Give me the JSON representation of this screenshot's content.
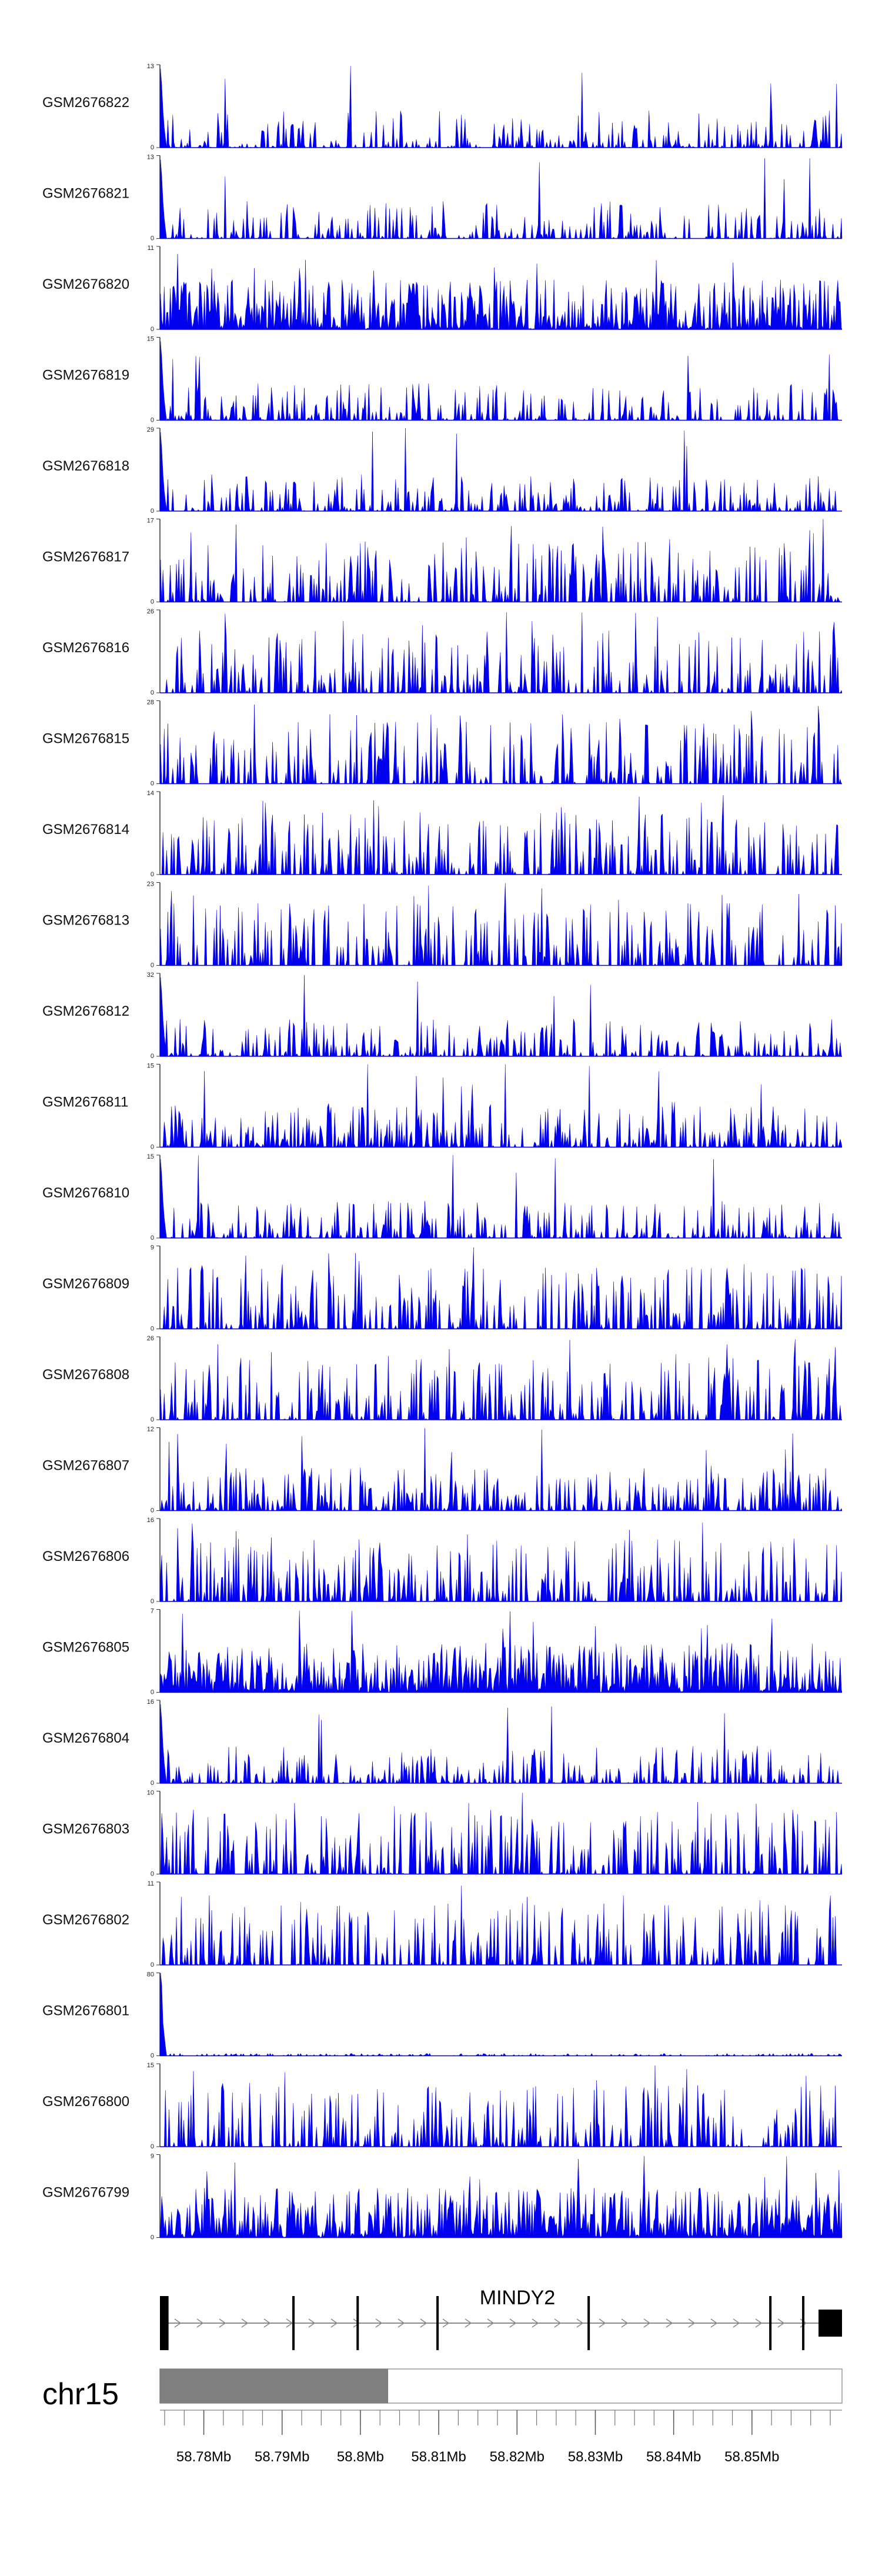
{
  "chart_data": {
    "type": "area",
    "genome_view": {
      "chromosome": "chr15",
      "gene": "MINDY2",
      "x_axis_tick_labels": [
        "58.78Mb",
        "58.79Mb",
        "58.8Mb",
        "58.81Mb",
        "58.82Mb",
        "58.83Mb",
        "58.84Mb",
        "58.85Mb"
      ],
      "x_axis_tick_positions_mb": [
        58.78,
        58.79,
        58.8,
        58.81,
        58.82,
        58.83,
        58.84,
        58.85
      ],
      "x_range_mb": [
        58.7744,
        58.8615
      ],
      "ideogram_highlight_mb": [
        58.7744,
        58.8035
      ],
      "exons_mb": [
        [
          58.7744,
          58.7755
        ],
        [
          58.7913,
          58.7916
        ],
        [
          58.7995,
          58.7998
        ],
        [
          58.8097,
          58.81
        ],
        [
          58.829,
          58.8293
        ],
        [
          58.8522,
          58.8525
        ],
        [
          58.8564,
          58.8567
        ],
        [
          58.8585,
          58.8615
        ]
      ]
    },
    "fill_color": "#0000ee",
    "tracks": [
      {
        "name": "GSM2676822",
        "ymax": "13",
        "y_min_label": "0",
        "profile": "sparse",
        "seed": 11
      },
      {
        "name": "GSM2676821",
        "ymax": "13",
        "y_min_label": "0",
        "profile": "sparse",
        "seed": 12
      },
      {
        "name": "GSM2676820",
        "ymax": "11",
        "y_min_label": "0",
        "profile": "dense",
        "seed": 13
      },
      {
        "name": "GSM2676819",
        "ymax": "15",
        "y_min_label": "0",
        "profile": "sparse",
        "seed": 14
      },
      {
        "name": "GSM2676818",
        "ymax": "29",
        "y_min_label": "0",
        "profile": "sparse",
        "seed": 15
      },
      {
        "name": "GSM2676817",
        "ymax": "17",
        "y_min_label": "0",
        "profile": "spiky",
        "seed": 16
      },
      {
        "name": "GSM2676816",
        "ymax": "26",
        "y_min_label": "0",
        "profile": "spiky",
        "seed": 17
      },
      {
        "name": "GSM2676815",
        "ymax": "28",
        "y_min_label": "0",
        "profile": "spiky",
        "seed": 18
      },
      {
        "name": "GSM2676814",
        "ymax": "14",
        "y_min_label": "0",
        "profile": "spiky",
        "seed": 19
      },
      {
        "name": "GSM2676813",
        "ymax": "23",
        "y_min_label": "0",
        "profile": "spiky",
        "seed": 20
      },
      {
        "name": "GSM2676812",
        "ymax": "32",
        "y_min_label": "0",
        "profile": "sparse",
        "seed": 21
      },
      {
        "name": "GSM2676811",
        "ymax": "15",
        "y_min_label": "0",
        "profile": "medium",
        "seed": 22
      },
      {
        "name": "GSM2676810",
        "ymax": "15",
        "y_min_label": "0",
        "profile": "sparse",
        "seed": 23
      },
      {
        "name": "GSM2676809",
        "ymax": "9",
        "y_min_label": "0",
        "profile": "spiky",
        "seed": 24
      },
      {
        "name": "GSM2676808",
        "ymax": "26",
        "y_min_label": "0",
        "profile": "spiky",
        "seed": 25
      },
      {
        "name": "GSM2676807",
        "ymax": "12",
        "y_min_label": "0",
        "profile": "medium",
        "seed": 26
      },
      {
        "name": "GSM2676806",
        "ymax": "16",
        "y_min_label": "0",
        "profile": "spiky",
        "seed": 27
      },
      {
        "name": "GSM2676805",
        "ymax": "7",
        "y_min_label": "0",
        "profile": "dense",
        "seed": 28
      },
      {
        "name": "GSM2676804",
        "ymax": "16",
        "y_min_label": "0",
        "profile": "sparse",
        "seed": 29
      },
      {
        "name": "GSM2676803",
        "ymax": "10",
        "y_min_label": "0",
        "profile": "spiky",
        "seed": 30
      },
      {
        "name": "GSM2676802",
        "ymax": "11",
        "y_min_label": "0",
        "profile": "spiky",
        "seed": 31
      },
      {
        "name": "GSM2676801",
        "ymax": "80",
        "y_min_label": "0",
        "profile": "flat",
        "seed": 32
      },
      {
        "name": "GSM2676800",
        "ymax": "15",
        "y_min_label": "0",
        "profile": "spiky",
        "seed": 33
      },
      {
        "name": "GSM2676799",
        "ymax": "9",
        "y_min_label": "0",
        "profile": "dense",
        "seed": 34
      }
    ]
  }
}
